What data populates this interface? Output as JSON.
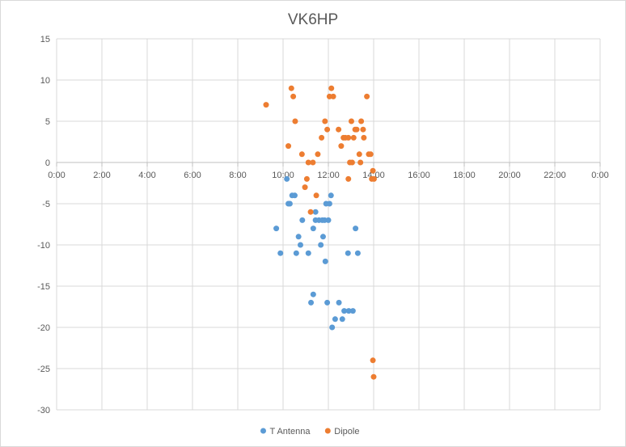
{
  "chart_data": {
    "type": "scatter",
    "title": "VK6HP",
    "xlabel": "",
    "ylabel": "",
    "x_unit": "time of day (HH:MM)",
    "xlim": [
      "0:00",
      "24:00"
    ],
    "ylim": [
      -30,
      15
    ],
    "x_ticks": [
      "0:00",
      "2:00",
      "4:00",
      "6:00",
      "8:00",
      "10:00",
      "12:00",
      "14:00",
      "16:00",
      "18:00",
      "20:00",
      "22:00",
      "0:00"
    ],
    "y_ticks": [
      "15",
      "10",
      "5",
      "0",
      "-5",
      "-10",
      "-15",
      "-20",
      "-25",
      "-30"
    ],
    "grid": true,
    "legend_position": "bottom",
    "series": [
      {
        "name": "T Antenna",
        "color": "#5b9bd5",
        "points": [
          [
            "9:42",
            -8
          ],
          [
            "9:53",
            -11
          ],
          [
            "10:10",
            -2
          ],
          [
            "10:14",
            -5
          ],
          [
            "10:18",
            -5
          ],
          [
            "10:24",
            -4
          ],
          [
            "10:31",
            -4
          ],
          [
            "10:35",
            -11
          ],
          [
            "10:41",
            -9
          ],
          [
            "10:46",
            -10
          ],
          [
            "10:51",
            -7
          ],
          [
            "11:07",
            -11
          ],
          [
            "11:14",
            -17
          ],
          [
            "11:20",
            -16
          ],
          [
            "11:20",
            -8
          ],
          [
            "11:26",
            -6
          ],
          [
            "11:26",
            -7
          ],
          [
            "11:35",
            -7
          ],
          [
            "11:40",
            -10
          ],
          [
            "11:44",
            -7
          ],
          [
            "11:46",
            -9
          ],
          [
            "11:50",
            -7
          ],
          [
            "11:52",
            -12
          ],
          [
            "11:54",
            -5
          ],
          [
            "11:57",
            -17
          ],
          [
            "12:00",
            -7
          ],
          [
            "12:03",
            -5
          ],
          [
            "12:07",
            -4
          ],
          [
            "12:10",
            -20
          ],
          [
            "12:18",
            -19
          ],
          [
            "12:28",
            -17
          ],
          [
            "12:37",
            -19
          ],
          [
            "12:42",
            -18
          ],
          [
            "12:52",
            -11
          ],
          [
            "12:54",
            -18
          ],
          [
            "13:05",
            -18
          ],
          [
            "13:12",
            -8
          ],
          [
            "13:18",
            -11
          ]
        ]
      },
      {
        "name": "Dipole",
        "color": "#ed7d31",
        "points": [
          [
            "9:15",
            7
          ],
          [
            "10:14",
            2
          ],
          [
            "10:22",
            9
          ],
          [
            "10:27",
            8
          ],
          [
            "10:32",
            5
          ],
          [
            "10:50",
            1
          ],
          [
            "10:58",
            -3
          ],
          [
            "11:03",
            -2
          ],
          [
            "11:07",
            0
          ],
          [
            "11:13",
            -6
          ],
          [
            "11:19",
            0
          ],
          [
            "11:28",
            -4
          ],
          [
            "11:32",
            1
          ],
          [
            "11:42",
            3
          ],
          [
            "11:51",
            5
          ],
          [
            "11:57",
            4
          ],
          [
            "12:03",
            8
          ],
          [
            "12:08",
            9
          ],
          [
            "12:13",
            8
          ],
          [
            "12:27",
            4
          ],
          [
            "12:34",
            2
          ],
          [
            "12:40",
            3
          ],
          [
            "12:45",
            3
          ],
          [
            "12:53",
            3
          ],
          [
            "12:57",
            0
          ],
          [
            "13:01",
            5
          ],
          [
            "13:03",
            0
          ],
          [
            "13:07",
            3
          ],
          [
            "13:11",
            4
          ],
          [
            "13:15",
            4
          ],
          [
            "13:22",
            1
          ],
          [
            "13:25",
            0
          ],
          [
            "13:27",
            5
          ],
          [
            "13:32",
            4
          ],
          [
            "13:34",
            3
          ],
          [
            "13:42",
            8
          ],
          [
            "13:47",
            1
          ],
          [
            "13:52",
            1
          ],
          [
            "13:55",
            -2
          ],
          [
            "13:58",
            -1
          ],
          [
            "14:01",
            -2
          ],
          [
            "13:58",
            -24
          ],
          [
            "14:00",
            -26
          ],
          [
            "12:53",
            -2
          ]
        ]
      }
    ]
  }
}
